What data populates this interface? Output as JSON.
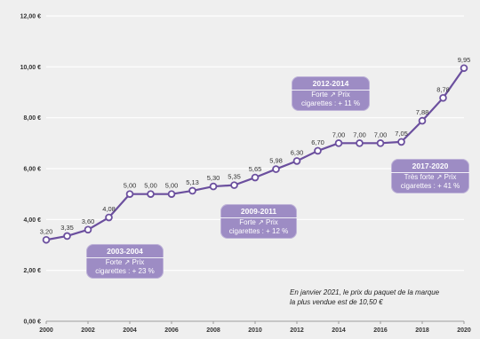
{
  "chart_data": {
    "type": "line",
    "x": [
      2000,
      2001,
      2002,
      2003,
      2004,
      2005,
      2006,
      2007,
      2008,
      2009,
      2010,
      2011,
      2012,
      2013,
      2014,
      2015,
      2016,
      2017,
      2018,
      2019,
      2020
    ],
    "series": [
      {
        "values": [
          3.2,
          3.35,
          3.6,
          4.08,
          5.0,
          5.0,
          5.0,
          5.13,
          5.3,
          5.35,
          5.65,
          5.98,
          6.3,
          6.7,
          7.0,
          7.0,
          7.0,
          7.05,
          7.88,
          8.78,
          9.95
        ],
        "labels": [
          "3,20",
          "3,35",
          "3,60",
          "4,08",
          "5,00",
          "5,00",
          "5,00",
          "5,13",
          "5,30",
          "5,35",
          "5,65",
          "5,98",
          "6,30",
          "6,70",
          "7,00",
          "7,00",
          "7,00",
          "7,05",
          "7,88",
          "8,78",
          "9,95"
        ]
      }
    ],
    "x_tick_labels": [
      "2000",
      "2002",
      "2004",
      "2006",
      "2008",
      "2010",
      "2012",
      "2014",
      "2016",
      "2018",
      "2020"
    ],
    "y_tick_values": [
      0,
      2,
      4,
      6,
      8,
      10,
      12
    ],
    "y_tick_labels": [
      "0,00 €",
      "2,00 €",
      "4,00 €",
      "6,00 €",
      "8,00 €",
      "10,00 €",
      "12,00 €"
    ],
    "ylim": [
      0,
      12
    ],
    "xlim": [
      2000,
      2020
    ],
    "grid": "horizontal",
    "title": "",
    "xlabel": "",
    "ylabel": "",
    "annotations": [
      {
        "title": "2003-2004",
        "line1": "Forte ↗ Prix",
        "line2": "cigarettes : + 23 %"
      },
      {
        "title": "2009-2011",
        "line1": "Forte ↗ Prix",
        "line2": "cigarettes : + 12 %"
      },
      {
        "title": "2012-2014",
        "line1": "Forte ↗ Prix",
        "line2": "cigarettes : + 11 %"
      },
      {
        "title": "2017-2020",
        "line1": "Très forte ↗ Prix",
        "line2": "cigarettes : + 41 %"
      }
    ],
    "note": {
      "line1": "En janvier 2021, le prix du paquet de la marque",
      "line2": "la plus vendue est de 10,50 €"
    },
    "colors": {
      "line": "#6b4f9e",
      "marker_fill": "#ffffff",
      "callout": "#9d8cc4",
      "grid": "#ffffff",
      "background": "#efefef"
    }
  }
}
